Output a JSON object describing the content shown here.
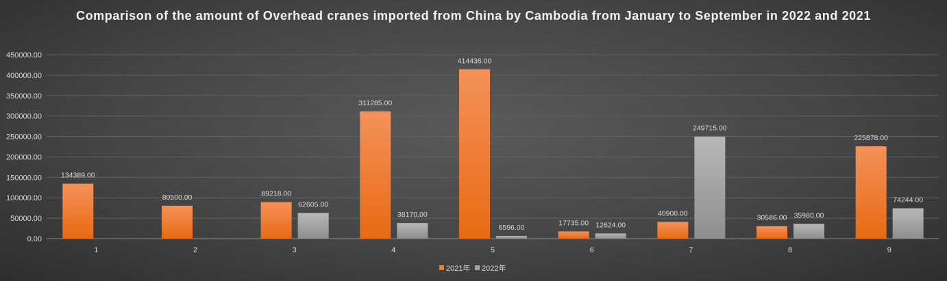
{
  "chart_data": {
    "type": "bar",
    "title": "Comparison of the amount of Overhead cranes imported from China by Cambodia from January to September in 2022 and 2021",
    "categories": [
      "1",
      "2",
      "3",
      "4",
      "5",
      "6",
      "7",
      "8",
      "9"
    ],
    "series": [
      {
        "name": "2021年",
        "color": "#f07c2c",
        "values": [
          134389,
          80500,
          89218,
          311285,
          414436,
          17735,
          40900,
          30586,
          225878
        ]
      },
      {
        "name": "2022年",
        "color": "#a5a5a5",
        "values": [
          null,
          null,
          62605,
          38170,
          6596,
          12624,
          249715,
          35980,
          74244
        ]
      }
    ],
    "ylim": [
      0,
      450000
    ],
    "yticks": [
      0,
      50000,
      100000,
      150000,
      200000,
      250000,
      300000,
      350000,
      400000,
      450000
    ],
    "value_format_decimals": 2,
    "grid": true,
    "legend": "bottom-center",
    "xlabel": "",
    "ylabel": ""
  }
}
